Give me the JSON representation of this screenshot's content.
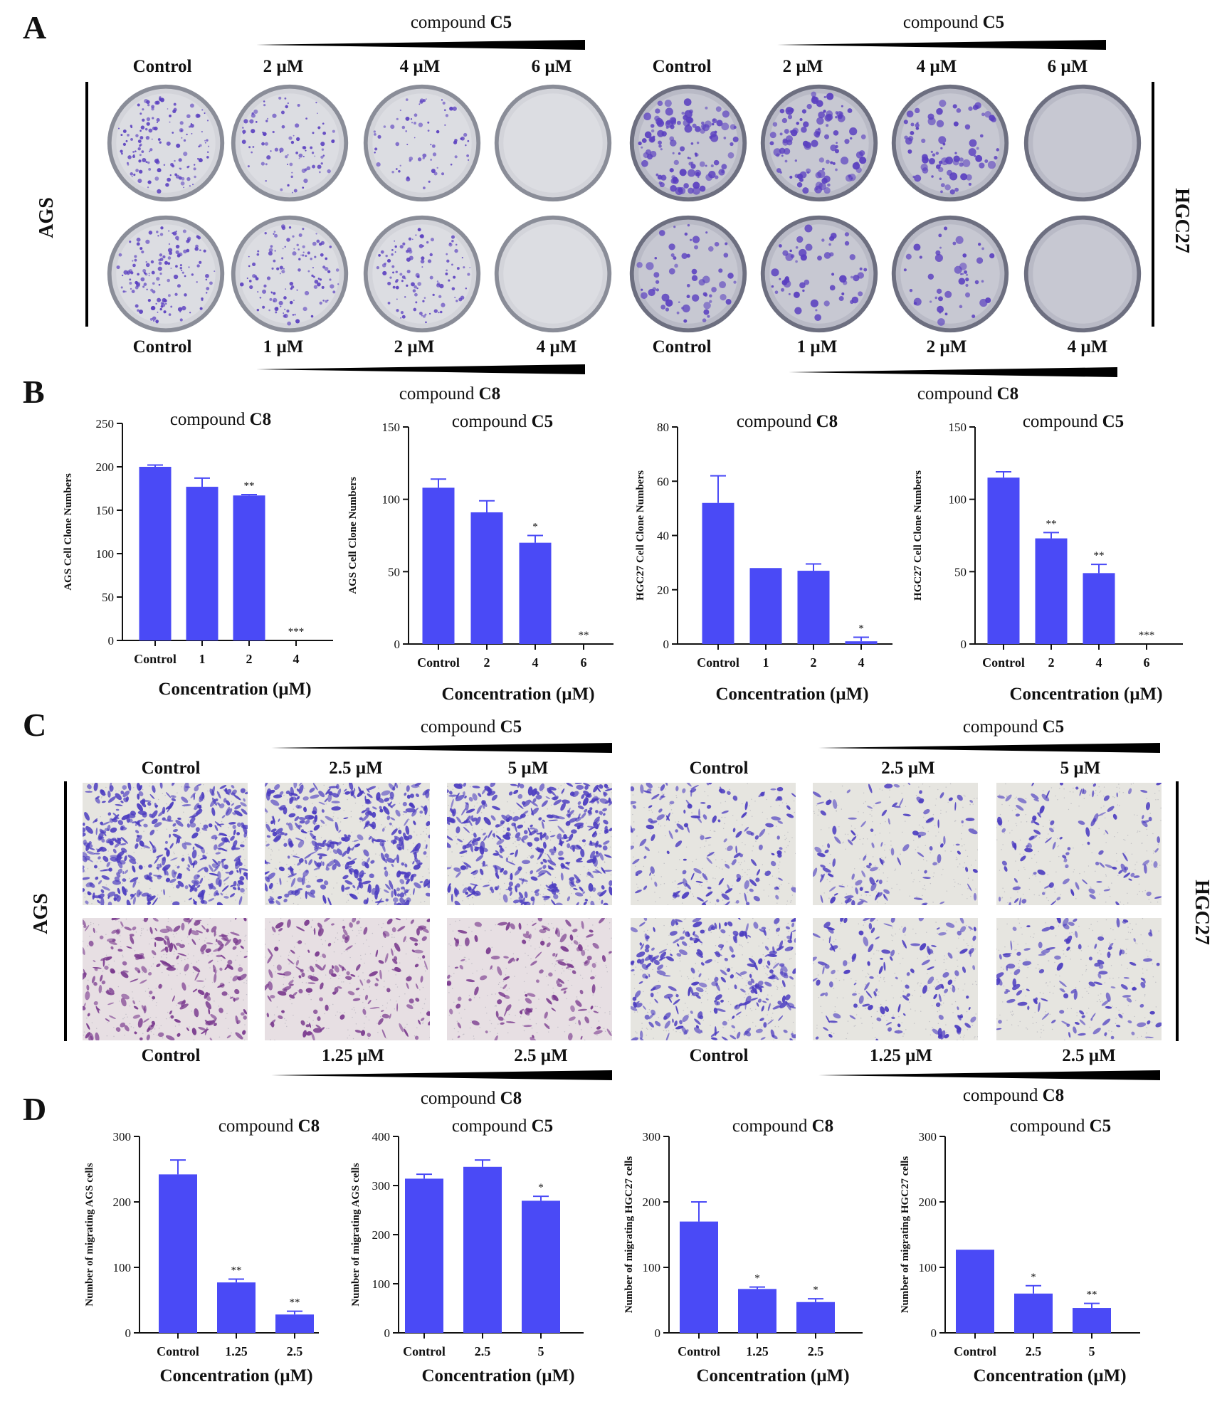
{
  "panels": {
    "A": "A",
    "B": "B",
    "C": "C",
    "D": "D"
  },
  "colors": {
    "bar": "#4a4af6",
    "stain": "#5a3fc0",
    "ink": "#111111"
  },
  "panel_a": {
    "compound_word": "compound",
    "left_top_compound": "C5",
    "right_top_compound": "C5",
    "left_top_labels": [
      "Control",
      "2 µM",
      "4 µM",
      "6 µM"
    ],
    "right_top_labels": [
      "Control",
      "2 µM",
      "4 µM",
      "6 µM"
    ],
    "left_bottom_labels": [
      "Control",
      "1 µM",
      "2 µM",
      "4 µM"
    ],
    "right_bottom_labels": [
      "Control",
      "1 µM",
      "2 µM",
      "4 µM"
    ],
    "left_cell_line": "AGS",
    "right_cell_line": "HGC27"
  },
  "panel_c": {
    "compound_word": "compound",
    "left_top_compound": "C5",
    "right_top_compound": "C5",
    "left_bottom_compound": "C8",
    "right_bottom_compound": "C8",
    "left_top_labels": [
      "Control",
      "2.5 µM",
      "5 µM"
    ],
    "right_top_labels": [
      "Control",
      "2.5 µM",
      "5 µM"
    ],
    "left_bottom_labels": [
      "Control",
      "1.25 µM",
      "2.5 µM"
    ],
    "right_bottom_labels": [
      "Control",
      "1.25 µM",
      "2.5 µM"
    ],
    "left_cell_line": "AGS",
    "right_cell_line": "HGC27"
  },
  "panel_b_headers": {
    "word": "compound",
    "left": "C8",
    "right": "C8"
  },
  "chart_data": [
    {
      "id": "b1",
      "type": "bar",
      "title_word": "compound",
      "title": "C8",
      "ylabel": "AGS Cell Clone Numbers",
      "xlabel": "Concentration (µM)",
      "categories": [
        "Control",
        "1",
        "2",
        "4"
      ],
      "values": [
        200,
        177,
        167,
        0
      ],
      "errors": [
        2,
        10,
        1,
        0
      ],
      "sig": [
        "",
        "",
        "**",
        "***"
      ],
      "ylim": [
        0,
        250
      ],
      "yticks": [
        0,
        50,
        100,
        150,
        200,
        250
      ]
    },
    {
      "id": "b2",
      "type": "bar",
      "title_word": "compound",
      "title": "C5",
      "ylabel": "AGS Cell Clone Numbers",
      "xlabel": "Concentration (µM)",
      "categories": [
        "Control",
        "2",
        "4",
        "6"
      ],
      "values": [
        108,
        91,
        70,
        0
      ],
      "errors": [
        6,
        8,
        5,
        0
      ],
      "sig": [
        "",
        "",
        "*",
        "**"
      ],
      "ylim": [
        0,
        150
      ],
      "yticks": [
        0,
        50,
        100,
        150
      ]
    },
    {
      "id": "b3",
      "type": "bar",
      "title_word": "compound",
      "title": "C8",
      "ylabel": "HGC27 Cell Clone Numbers",
      "xlabel": "Concentration (µM)",
      "categories": [
        "Control",
        "1",
        "2",
        "4"
      ],
      "values": [
        52,
        28,
        27,
        1
      ],
      "errors": [
        10,
        0,
        2.5,
        1.5
      ],
      "sig": [
        "",
        "",
        "",
        "*"
      ],
      "ylim": [
        0,
        80
      ],
      "yticks": [
        0,
        20,
        40,
        60,
        80
      ]
    },
    {
      "id": "b4",
      "type": "bar",
      "title_word": "compound",
      "title": "C5",
      "ylabel": "HGC27 Cell Clone Numbers",
      "xlabel": "Concentration (µM)",
      "categories": [
        "Control",
        "2",
        "4",
        "6"
      ],
      "values": [
        115,
        73,
        49,
        0
      ],
      "errors": [
        4,
        4,
        6,
        0
      ],
      "sig": [
        "",
        "**",
        "**",
        "***"
      ],
      "ylim": [
        0,
        150
      ],
      "yticks": [
        0,
        50,
        100,
        150
      ]
    },
    {
      "id": "d1",
      "type": "bar",
      "title_word": "compound",
      "title": "C8",
      "ylabel": "Number of migrating AGS cells",
      "xlabel": "Concentration (µM)",
      "categories": [
        "Control",
        "1.25",
        "2.5"
      ],
      "values": [
        242,
        77,
        28
      ],
      "errors": [
        22,
        5,
        5
      ],
      "sig": [
        "",
        "**",
        "**"
      ],
      "ylim": [
        0,
        300
      ],
      "yticks": [
        0,
        100,
        200,
        300
      ]
    },
    {
      "id": "d2",
      "type": "bar",
      "title_word": "compound",
      "title": "C5",
      "ylabel": "Number of migrating AGS cells",
      "xlabel": "Concentration (µM)",
      "categories": [
        "Control",
        "2.5",
        "5"
      ],
      "values": [
        314,
        338,
        269
      ],
      "errors": [
        9,
        14,
        9
      ],
      "sig": [
        "",
        "",
        "*"
      ],
      "ylim": [
        0,
        400
      ],
      "yticks": [
        0,
        100,
        200,
        300,
        400
      ]
    },
    {
      "id": "d3",
      "type": "bar",
      "title_word": "compound",
      "title": "C8",
      "ylabel": "Number of migrating HGC27 cells",
      "xlabel": "Concentration (µM)",
      "categories": [
        "Control",
        "1.25",
        "2.5"
      ],
      "values": [
        170,
        67,
        47
      ],
      "errors": [
        30,
        3,
        5
      ],
      "sig": [
        "",
        "*",
        "*"
      ],
      "ylim": [
        0,
        300
      ],
      "yticks": [
        0,
        100,
        200,
        300
      ]
    },
    {
      "id": "d4",
      "type": "bar",
      "title_word": "compound",
      "title": "C5",
      "ylabel": "Number of migrating HGC27 cells",
      "xlabel": "Concentration (µM)",
      "categories": [
        "Control",
        "2.5",
        "5"
      ],
      "values": [
        127,
        60,
        38
      ],
      "errors": [
        0,
        12,
        7
      ],
      "sig": [
        "",
        "*",
        "**"
      ],
      "ylim": [
        0,
        300
      ],
      "yticks": [
        0,
        100,
        200,
        300
      ]
    }
  ]
}
